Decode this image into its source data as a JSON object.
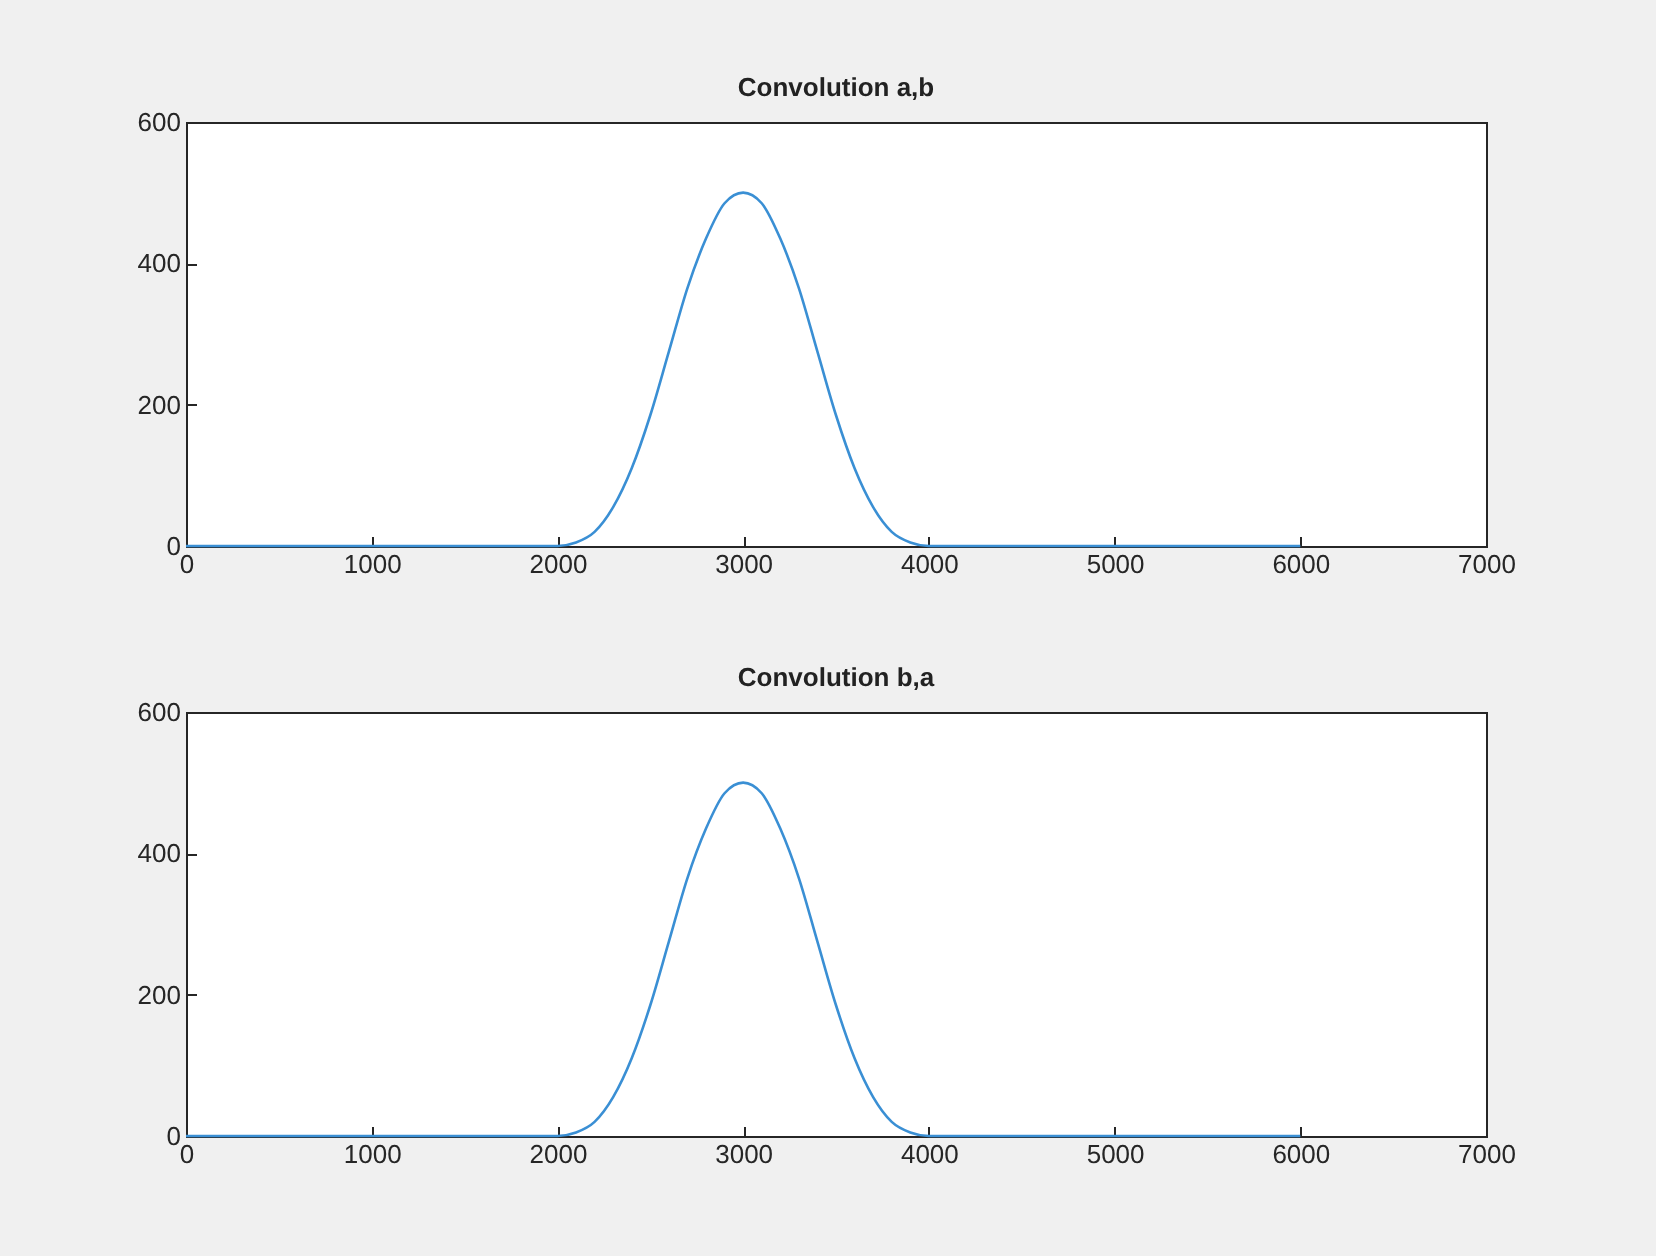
{
  "chart_data": [
    {
      "type": "line",
      "title": "Convolution a,b",
      "x": [
        0,
        1000,
        2000,
        2100,
        2200,
        2300,
        2400,
        2500,
        2600,
        2700,
        2800,
        2900,
        3000,
        3100,
        3200,
        3300,
        3400,
        3500,
        3600,
        3700,
        3800,
        3900,
        4000,
        5000,
        6000
      ],
      "series": [
        {
          "color": "#3a8fd4",
          "values": [
            0,
            0,
            0,
            5,
            20,
            55,
            110,
            185,
            275,
            365,
            435,
            485,
            500,
            485,
            435,
            365,
            275,
            185,
            110,
            55,
            20,
            5,
            0,
            0,
            0
          ]
        }
      ],
      "xlim": [
        0,
        7000
      ],
      "xticks": [
        0,
        1000,
        2000,
        3000,
        4000,
        5000,
        6000,
        7000
      ],
      "ylim": [
        0,
        600
      ],
      "yticks": [
        0,
        200,
        400,
        600
      ]
    },
    {
      "type": "line",
      "title": "Convolution b,a",
      "x": [
        0,
        1000,
        2000,
        2100,
        2200,
        2300,
        2400,
        2500,
        2600,
        2700,
        2800,
        2900,
        3000,
        3100,
        3200,
        3300,
        3400,
        3500,
        3600,
        3700,
        3800,
        3900,
        4000,
        5000,
        6000
      ],
      "series": [
        {
          "color": "#3a8fd4",
          "values": [
            0,
            0,
            0,
            5,
            20,
            55,
            110,
            185,
            275,
            365,
            435,
            485,
            500,
            485,
            435,
            365,
            275,
            185,
            110,
            55,
            20,
            5,
            0,
            0,
            0
          ]
        }
      ],
      "xlim": [
        0,
        7000
      ],
      "xticks": [
        0,
        1000,
        2000,
        3000,
        4000,
        5000,
        6000,
        7000
      ],
      "ylim": [
        0,
        600
      ],
      "yticks": [
        0,
        200,
        400,
        600
      ]
    }
  ]
}
